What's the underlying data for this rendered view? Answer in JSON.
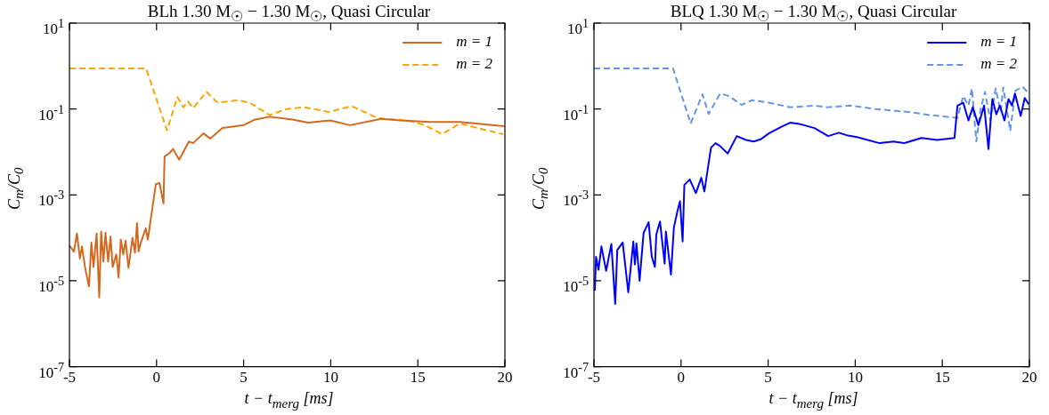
{
  "chart_data": [
    {
      "type": "line",
      "title": "BLh 1.30 M$_{☉}$ − 1.30 M$_{☉}$,  Quasi Circular",
      "xlabel": "t − t$_{merg}$ [ms]",
      "ylabel": "C$_{m}$/C$_{0}$",
      "log": "y",
      "grid": false,
      "legend": "top right",
      "xlim": [
        -5,
        20
      ],
      "xticks": [
        -5,
        0,
        5,
        10,
        15,
        20
      ],
      "ylim": [
        1e-07,
        10
      ],
      "yticks": [
        {
          "value": 1e-07,
          "label": "10$^{-7}$"
        },
        {
          "value": 1e-05,
          "label": "10$^{-5}$"
        },
        {
          "value": 0.001,
          "label": "10$^{-3}$"
        },
        {
          "value": 0.1,
          "label": "10$^{-1}$"
        },
        {
          "value": 10,
          "label": "10$^{1}$"
        }
      ],
      "series": [
        {
          "name": "m = 1",
          "color": "#d2691e",
          "line_style": "solid",
          "x": [
            -5,
            -4.74,
            -4.57,
            -4.4,
            -4.28,
            -4.1,
            -3.88,
            -3.74,
            -3.62,
            -3.44,
            -3.29,
            -3.18,
            -3.05,
            -2.93,
            -2.78,
            -2.64,
            -2.52,
            -2.31,
            -2.18,
            -2.05,
            -1.91,
            -1.78,
            -1.61,
            -1.38,
            -1.24,
            -1.12,
            -1.03,
            -0.9,
            -0.62,
            -0.5,
            -0.04,
            0.17,
            0.4,
            0.46,
            0.72,
            0.95,
            1.3,
            1.86,
            2.1,
            2.69,
            3.08,
            3.78,
            5.0,
            5.6,
            6.5,
            7.8,
            8.7,
            9.97,
            11.1,
            12.9,
            14.0,
            15.7,
            17.4,
            19.96
          ],
          "values": [
            6.6e-05,
            4.8e-05,
            0.000126,
            3.3e-05,
            6.3e-05,
            2e-05,
            7.4e-06,
            7.8e-05,
            2.1e-05,
            0.000126,
            4.1e-06,
            0.00014,
            2.8e-05,
            0.00013,
            2.8e-05,
            0.000107,
            2.1e-05,
            4.1e-05,
            1.2e-05,
            9.1e-05,
            4.1e-05,
            8.6e-05,
            2e-05,
            0.0001,
            4.5e-05,
            0.00022,
            4.8e-05,
            7.8e-05,
            0.000166,
            9.1e-05,
            0.00178,
            0.00188,
            0.00063,
            0.0078,
            0.0092,
            0.0117,
            0.0066,
            0.0175,
            0.016,
            0.027,
            0.0205,
            0.036,
            0.042,
            0.056,
            0.066,
            0.057,
            0.048,
            0.054,
            0.042,
            0.059,
            0.054,
            0.05,
            0.05,
            0.04
          ]
        },
        {
          "name": "m = 2",
          "color": "#ffa500",
          "line_style": "dashed",
          "x": [
            -5,
            -0.6,
            0.6,
            1.2,
            1.55,
            1.8,
            2.1,
            2.87,
            3.5,
            4.66,
            5.35,
            6.5,
            7.46,
            8.5,
            9.9,
            11.2,
            12.7,
            14.45,
            15.4,
            16.4,
            17.4,
            18.8,
            19.9
          ],
          "values": [
            0.88,
            0.88,
            0.032,
            0.19,
            0.11,
            0.15,
            0.105,
            0.25,
            0.14,
            0.16,
            0.14,
            0.072,
            0.1,
            0.11,
            0.085,
            0.117,
            0.061,
            0.054,
            0.042,
            0.026,
            0.046,
            0.033,
            0.026
          ]
        }
      ]
    },
    {
      "type": "line",
      "title": "BLQ 1.30 M$_{☉}$ − 1.30 M$_{☉}$,  Quasi Circular",
      "xlabel": "t − t$_{merg}$ [ms]",
      "ylabel": "C$_{m}$/C$_{0}$",
      "log": "y",
      "grid": false,
      "legend": "top right",
      "xlim": [
        -5,
        20
      ],
      "xticks": [
        -5,
        0,
        5,
        10,
        15,
        20
      ],
      "ylim": [
        1e-07,
        10
      ],
      "yticks": [
        {
          "value": 1e-07,
          "label": "10$^{-7}$"
        },
        {
          "value": 1e-05,
          "label": "10$^{-5}$"
        },
        {
          "value": 0.001,
          "label": "10$^{-3}$"
        },
        {
          "value": 0.1,
          "label": "10$^{-1}$"
        },
        {
          "value": 10,
          "label": "10$^{1}$"
        }
      ],
      "series": [
        {
          "name": "m = 1",
          "color": "#0000ff",
          "line_style": "solid",
          "x": [
            -4.95,
            -4.88,
            -4.74,
            -4.57,
            -4.3,
            -4.0,
            -3.78,
            -3.66,
            -3.35,
            -3.03,
            -2.74,
            -2.65,
            -2.56,
            -2.38,
            -2.15,
            -1.86,
            -1.68,
            -1.5,
            -1.42,
            -1.21,
            -0.94,
            -0.87,
            -0.58,
            -0.41,
            -0.2,
            -0.06,
            0.09,
            0.19,
            0.5,
            0.85,
            1.16,
            1.34,
            1.72,
            1.98,
            2.24,
            2.68,
            3.2,
            3.73,
            4.17,
            4.6,
            5.04,
            5.74,
            6.26,
            6.79,
            7.66,
            8.45,
            9.06,
            9.58,
            10.1,
            11.4,
            12.2,
            12.8,
            13.8,
            14.7,
            15.7,
            15.87,
            16.2,
            16.5,
            16.75,
            17.07,
            17.4,
            17.65,
            17.87,
            18.1,
            18.3,
            18.57,
            18.8,
            19.0,
            19.17,
            19.5,
            19.73,
            19.96
          ],
          "values": [
            5.9e-06,
            3.6e-05,
            1.8e-05,
            6.3e-05,
            1.7e-05,
            7.2e-05,
            2.9e-06,
            5.2e-05,
            7.8e-05,
            5.4e-06,
            8.2e-05,
            2.4e-05,
            7.4e-05,
            1e-05,
            0.00013,
            0.00023,
            3.6e-05,
            2.1e-05,
            0.00012,
            0.00024,
            2.5e-05,
            0.00014,
            1.4e-05,
            0.000175,
            0.00043,
            0.00071,
            8.2e-05,
            0.0017,
            0.0023,
            0.0011,
            0.0025,
            0.0012,
            0.0126,
            0.016,
            0.0137,
            0.0092,
            0.0234,
            0.019,
            0.0175,
            0.02,
            0.027,
            0.038,
            0.048,
            0.045,
            0.036,
            0.0234,
            0.028,
            0.024,
            0.0222,
            0.016,
            0.0175,
            0.016,
            0.0212,
            0.019,
            0.0212,
            0.12,
            0.14,
            0.054,
            0.11,
            0.042,
            0.12,
            0.0117,
            0.17,
            0.075,
            0.12,
            0.054,
            0.17,
            0.12,
            0.23,
            0.069,
            0.18,
            0.13
          ]
        },
        {
          "name": "m = 2",
          "color": "#6495ed",
          "line_style": "dashed",
          "x": [
            -5,
            -0.46,
            0.55,
            1.23,
            1.58,
            2.25,
            2.75,
            3.47,
            4.08,
            5.04,
            6.26,
            7.66,
            8.36,
            9.76,
            11.16,
            13.07,
            14.3,
            15.87,
            16.2,
            16.5,
            16.7,
            16.95,
            17.2,
            17.45,
            17.76,
            18.06,
            18.35,
            18.5,
            18.9,
            19.2,
            19.6,
            19.97
          ],
          "values": [
            0.88,
            0.88,
            0.046,
            0.22,
            0.077,
            0.23,
            0.2,
            0.125,
            0.16,
            0.14,
            0.11,
            0.12,
            0.11,
            0.12,
            0.1,
            0.085,
            0.072,
            0.062,
            0.2,
            0.12,
            0.3,
            0.0175,
            0.1,
            0.25,
            0.054,
            0.3,
            0.088,
            0.32,
            0.031,
            0.27,
            0.33,
            0.23
          ]
        }
      ]
    }
  ]
}
